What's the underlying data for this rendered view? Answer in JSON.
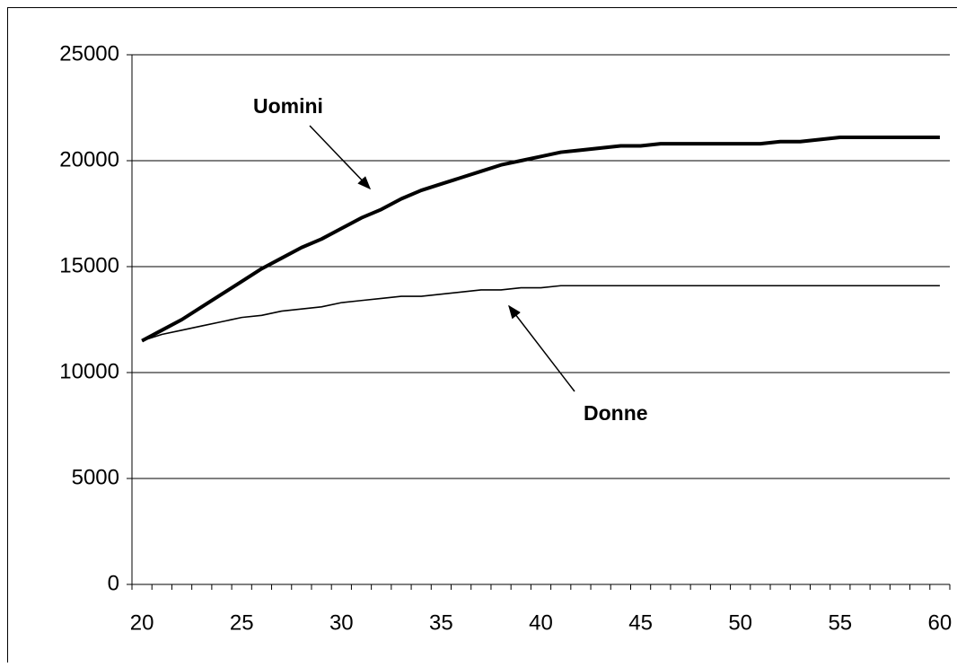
{
  "chart_data": {
    "type": "line",
    "x": [
      20,
      21,
      22,
      23,
      24,
      25,
      26,
      27,
      28,
      29,
      30,
      31,
      32,
      33,
      34,
      35,
      36,
      37,
      38,
      39,
      40,
      41,
      42,
      43,
      44,
      45,
      46,
      47,
      48,
      49,
      50,
      51,
      52,
      53,
      54,
      55,
      56,
      57,
      58,
      59,
      60
    ],
    "series": [
      {
        "name": "Uomini",
        "color": "#000000",
        "values": [
          11500,
          12000,
          12500,
          13100,
          13700,
          14300,
          14900,
          15400,
          15900,
          16300,
          16800,
          17300,
          17700,
          18200,
          18600,
          18900,
          19200,
          19500,
          19800,
          20000,
          20200,
          20400,
          20500,
          20600,
          20700,
          20700,
          20800,
          20800,
          20800,
          20800,
          20800,
          20800,
          20900,
          20900,
          21000,
          21100,
          21100,
          21100,
          21100,
          21100,
          21100
        ]
      },
      {
        "name": "Donne",
        "color": "#000000",
        "values": [
          11500,
          11800,
          12000,
          12200,
          12400,
          12600,
          12700,
          12900,
          13000,
          13100,
          13300,
          13400,
          13500,
          13600,
          13600,
          13700,
          13800,
          13900,
          13900,
          14000,
          14000,
          14100,
          14100,
          14100,
          14100,
          14100,
          14100,
          14100,
          14100,
          14100,
          14100,
          14100,
          14100,
          14100,
          14100,
          14100,
          14100,
          14100,
          14100,
          14100,
          14100
        ]
      }
    ],
    "xlim": [
      19.5,
      60.5
    ],
    "xticks": [
      20,
      25,
      30,
      35,
      40,
      45,
      50,
      55,
      60
    ],
    "ylim": [
      0,
      25000
    ],
    "yticks": [
      0,
      5000,
      10000,
      15000,
      20000,
      25000
    ],
    "grid": true
  }
}
